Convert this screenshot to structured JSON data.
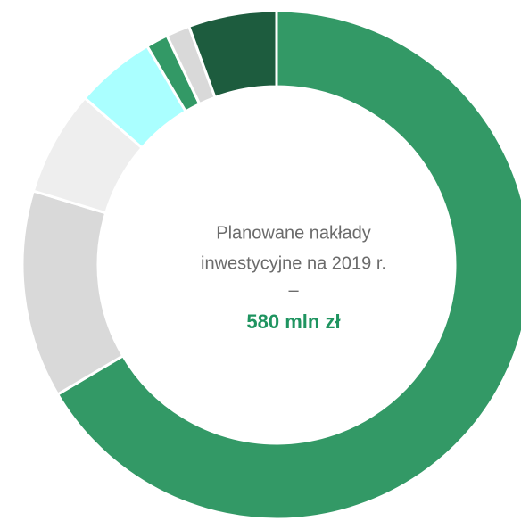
{
  "chart_data": {
    "type": "pie",
    "donut": true,
    "values": [
      66.5,
      13.2,
      6.7,
      5.1,
      1.4,
      1.5,
      5.6
    ],
    "colors": [
      "#339966",
      "#d9d9d9",
      "#eeeeee",
      "#aaffff",
      "#339966",
      "#d9d9d9",
      "#1d5c3e"
    ],
    "center_text": [
      "Planowane nakłady",
      "inwestycyjne na 2019 r.",
      "–",
      "580 mln zł"
    ]
  }
}
